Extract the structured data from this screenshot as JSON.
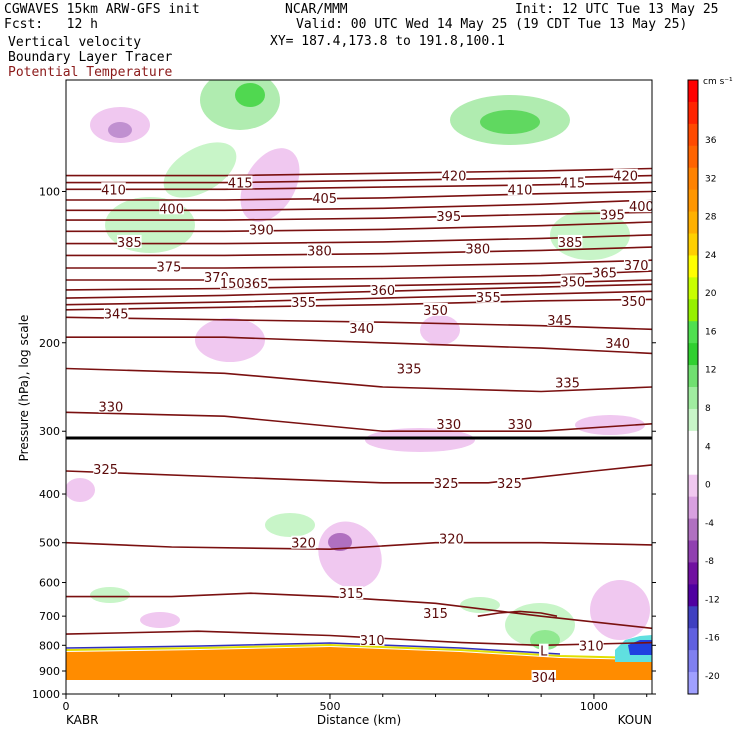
{
  "header": {
    "left1": "CGWAVES 15km ARW-GFS init",
    "left2": "Fcst:   12 h",
    "center1": "NCAR/MMM",
    "center2": "Valid: 00 UTC Wed 14 May 25 (19 CDT Tue 13 May 25)",
    "center3": "XY= 187.4,173.8 to 191.8,100.1",
    "right1": "Init: 12 UTC Tue 13 May 25",
    "field1": "Vertical velocity",
    "field2": "Boundary Layer Tracer",
    "field3": "Potential Temperature",
    "field3_color": "#8b1a1a"
  },
  "chart_data": {
    "type": "cross-section",
    "x_axis": {
      "label": "Distance (km)",
      "range": [
        0,
        1110
      ],
      "ticks": [
        0,
        500,
        1000
      ],
      "left_endpoint": "KABR",
      "right_endpoint": "KOUN"
    },
    "y_axis": {
      "label": "Pressure (hPa), log scale",
      "scale": "log",
      "range": [
        1000,
        60
      ],
      "ticks": [
        100,
        200,
        300,
        400,
        500,
        600,
        700,
        800,
        900,
        1000
      ]
    },
    "colorbar": {
      "unit": "cm s⁻¹",
      "labels": [
        "36",
        "32",
        "28",
        "24",
        "20",
        "16",
        "12",
        "8",
        "4",
        "0",
        "-4",
        "-8",
        "-12",
        "-16",
        "-20"
      ],
      "colors": [
        "#ff0000",
        "#ff2400",
        "#ff4a00",
        "#ff6400",
        "#ff8200",
        "#ff9600",
        "#ffb000",
        "#ffd000",
        "#ffff00",
        "#c8ff00",
        "#96f000",
        "#50e050",
        "#30d030",
        "#70e070",
        "#a0eca0",
        "#c8f5c8",
        "#ffffff",
        "#ffffff",
        "#f0c8f0",
        "#d8a0e0",
        "#b070c0",
        "#9040b0",
        "#7010a0",
        "#5000a0",
        "#4040c0",
        "#6060e0",
        "#8080f0",
        "#a0a0ff"
      ]
    },
    "theta_contours": [
      {
        "theta": 304,
        "points": [
          [
            780,
            700
          ],
          [
            820,
            690
          ],
          [
            860,
            685
          ],
          [
            900,
            690
          ],
          [
            930,
            700
          ]
        ]
      },
      {
        "theta": 310,
        "points": [
          [
            0,
            760
          ],
          [
            250,
            750
          ],
          [
            500,
            765
          ],
          [
            750,
            790
          ],
          [
            900,
            800
          ],
          [
            1110,
            790
          ]
        ]
      },
      {
        "theta": 315,
        "points": [
          [
            0,
            640
          ],
          [
            200,
            640
          ],
          [
            350,
            630
          ],
          [
            500,
            640
          ],
          [
            700,
            660
          ],
          [
            900,
            700
          ],
          [
            1110,
            740
          ]
        ]
      },
      {
        "theta": 320,
        "points": [
          [
            0,
            500
          ],
          [
            200,
            510
          ],
          [
            500,
            515
          ],
          [
            700,
            500
          ],
          [
            900,
            500
          ],
          [
            1110,
            505
          ]
        ]
      },
      {
        "theta": 325,
        "points": [
          [
            0,
            360
          ],
          [
            300,
            370
          ],
          [
            600,
            380
          ],
          [
            800,
            380
          ],
          [
            1000,
            360
          ],
          [
            1110,
            350
          ]
        ]
      },
      {
        "theta": 330,
        "points": [
          [
            0,
            275
          ],
          [
            300,
            280
          ],
          [
            600,
            300
          ],
          [
            900,
            300
          ],
          [
            1110,
            290
          ]
        ]
      },
      {
        "theta": 335,
        "points": [
          [
            0,
            225
          ],
          [
            300,
            230
          ],
          [
            600,
            245
          ],
          [
            900,
            250
          ],
          [
            1110,
            245
          ]
        ]
      },
      {
        "theta": 340,
        "points": [
          [
            0,
            195
          ],
          [
            300,
            195
          ],
          [
            600,
            200
          ],
          [
            900,
            205
          ],
          [
            1110,
            210
          ]
        ]
      },
      {
        "theta": 345,
        "points": [
          [
            0,
            178
          ],
          [
            300,
            180
          ],
          [
            600,
            182
          ],
          [
            900,
            185
          ],
          [
            1110,
            188
          ]
        ]
      },
      {
        "theta": 350,
        "points": [
          [
            0,
            172
          ],
          [
            300,
            170
          ],
          [
            600,
            168
          ],
          [
            900,
            165
          ],
          [
            1110,
            164
          ]
        ]
      },
      {
        "theta": 355,
        "points": [
          [
            0,
            168
          ],
          [
            300,
            166
          ],
          [
            600,
            163
          ],
          [
            900,
            160
          ],
          [
            1110,
            158
          ]
        ]
      },
      {
        "theta": 360,
        "points": [
          [
            0,
            163
          ],
          [
            300,
            161
          ],
          [
            600,
            158
          ],
          [
            900,
            155
          ],
          [
            1110,
            153
          ]
        ]
      },
      {
        "theta": 365,
        "points": [
          [
            0,
            157
          ],
          [
            300,
            156
          ],
          [
            600,
            154
          ],
          [
            900,
            152
          ],
          [
            1110,
            150
          ]
        ]
      },
      {
        "theta": 370,
        "points": [
          [
            0,
            150
          ],
          [
            300,
            150
          ],
          [
            600,
            149
          ],
          [
            900,
            147
          ],
          [
            1110,
            144
          ]
        ]
      },
      {
        "theta": 375,
        "points": [
          [
            0,
            142
          ],
          [
            300,
            142
          ],
          [
            600,
            141
          ],
          [
            900,
            139
          ],
          [
            1110,
            137
          ]
        ]
      },
      {
        "theta": 380,
        "points": [
          [
            0,
            134
          ],
          [
            300,
            134
          ],
          [
            600,
            133
          ],
          [
            900,
            131
          ],
          [
            1110,
            129
          ]
        ]
      },
      {
        "theta": 385,
        "points": [
          [
            0,
            127
          ],
          [
            300,
            127
          ],
          [
            600,
            126
          ],
          [
            900,
            124
          ],
          [
            1110,
            122
          ]
        ]
      },
      {
        "theta": 390,
        "points": [
          [
            0,
            120
          ],
          [
            300,
            120
          ],
          [
            600,
            119
          ],
          [
            900,
            117
          ],
          [
            1110,
            115
          ]
        ]
      },
      {
        "theta": 395,
        "points": [
          [
            0,
            114
          ],
          [
            300,
            114
          ],
          [
            600,
            113
          ],
          [
            900,
            111
          ],
          [
            1110,
            110
          ]
        ]
      },
      {
        "theta": 400,
        "points": [
          [
            0,
            109
          ],
          [
            300,
            109
          ],
          [
            600,
            108
          ],
          [
            900,
            106
          ],
          [
            1110,
            104
          ]
        ]
      },
      {
        "theta": 405,
        "points": [
          [
            0,
            104
          ],
          [
            300,
            104
          ],
          [
            600,
            103
          ],
          [
            900,
            101
          ],
          [
            1110,
            100
          ]
        ]
      },
      {
        "theta": 410,
        "points": [
          [
            0,
            99
          ],
          [
            300,
            99
          ],
          [
            600,
            98
          ],
          [
            900,
            97
          ],
          [
            1110,
            96
          ]
        ]
      },
      {
        "theta": 415,
        "points": [
          [
            0,
            96
          ],
          [
            300,
            96
          ],
          [
            600,
            95
          ],
          [
            900,
            94
          ],
          [
            1110,
            93
          ]
        ]
      },
      {
        "theta": 420,
        "points": [
          [
            0,
            93
          ],
          [
            300,
            93
          ],
          [
            600,
            92
          ],
          [
            900,
            91
          ],
          [
            1110,
            90
          ]
        ]
      }
    ],
    "theta_labels": [
      {
        "text": "410",
        "x": 90,
        "p": 99
      },
      {
        "text": "415",
        "x": 330,
        "p": 96
      },
      {
        "text": "420",
        "x": 735,
        "p": 93
      },
      {
        "text": "410",
        "x": 860,
        "p": 99
      },
      {
        "text": "415",
        "x": 960,
        "p": 96
      },
      {
        "text": "420",
        "x": 1060,
        "p": 93
      },
      {
        "text": "400",
        "x": 200,
        "p": 108
      },
      {
        "text": "405",
        "x": 490,
        "p": 103
      },
      {
        "text": "395",
        "x": 725,
        "p": 112
      },
      {
        "text": "395",
        "x": 1035,
        "p": 111
      },
      {
        "text": "400",
        "x": 1090,
        "p": 107
      },
      {
        "text": "390",
        "x": 370,
        "p": 119
      },
      {
        "text": "385",
        "x": 120,
        "p": 126
      },
      {
        "text": "380",
        "x": 480,
        "p": 131
      },
      {
        "text": "380",
        "x": 780,
        "p": 130
      },
      {
        "text": "385",
        "x": 955,
        "p": 126
      },
      {
        "text": "375",
        "x": 195,
        "p": 141
      },
      {
        "text": "370",
        "x": 285,
        "p": 148
      },
      {
        "text": "150",
        "x": 315,
        "p": 152
      },
      {
        "text": "365",
        "x": 360,
        "p": 152
      },
      {
        "text": "360",
        "x": 600,
        "p": 157
      },
      {
        "text": "350",
        "x": 960,
        "p": 151
      },
      {
        "text": "365",
        "x": 1020,
        "p": 145
      },
      {
        "text": "370",
        "x": 1080,
        "p": 140
      },
      {
        "text": "355",
        "x": 450,
        "p": 166
      },
      {
        "text": "355",
        "x": 800,
        "p": 162
      },
      {
        "text": "350",
        "x": 700,
        "p": 172
      },
      {
        "text": "350",
        "x": 1075,
        "p": 165
      },
      {
        "text": "345",
        "x": 95,
        "p": 175
      },
      {
        "text": "345",
        "x": 935,
        "p": 180
      },
      {
        "text": "340",
        "x": 560,
        "p": 187
      },
      {
        "text": "340",
        "x": 1045,
        "p": 200
      },
      {
        "text": "335",
        "x": 650,
        "p": 225
      },
      {
        "text": "335",
        "x": 950,
        "p": 240
      },
      {
        "text": "330",
        "x": 85,
        "p": 268
      },
      {
        "text": "330",
        "x": 725,
        "p": 290
      },
      {
        "text": "330",
        "x": 860,
        "p": 290
      },
      {
        "text": "325",
        "x": 75,
        "p": 357
      },
      {
        "text": "325",
        "x": 720,
        "p": 380
      },
      {
        "text": "325",
        "x": 840,
        "p": 380
      },
      {
        "text": "320",
        "x": 450,
        "p": 500
      },
      {
        "text": "320",
        "x": 730,
        "p": 490
      },
      {
        "text": "315",
        "x": 540,
        "p": 630
      },
      {
        "text": "315",
        "x": 700,
        "p": 690
      },
      {
        "text": "310",
        "x": 580,
        "p": 780
      },
      {
        "text": "310",
        "x": 995,
        "p": 800
      },
      {
        "text": "304",
        "x": 905,
        "p": 925
      },
      {
        "text": "L",
        "x": 905,
        "p": 820
      }
    ]
  }
}
